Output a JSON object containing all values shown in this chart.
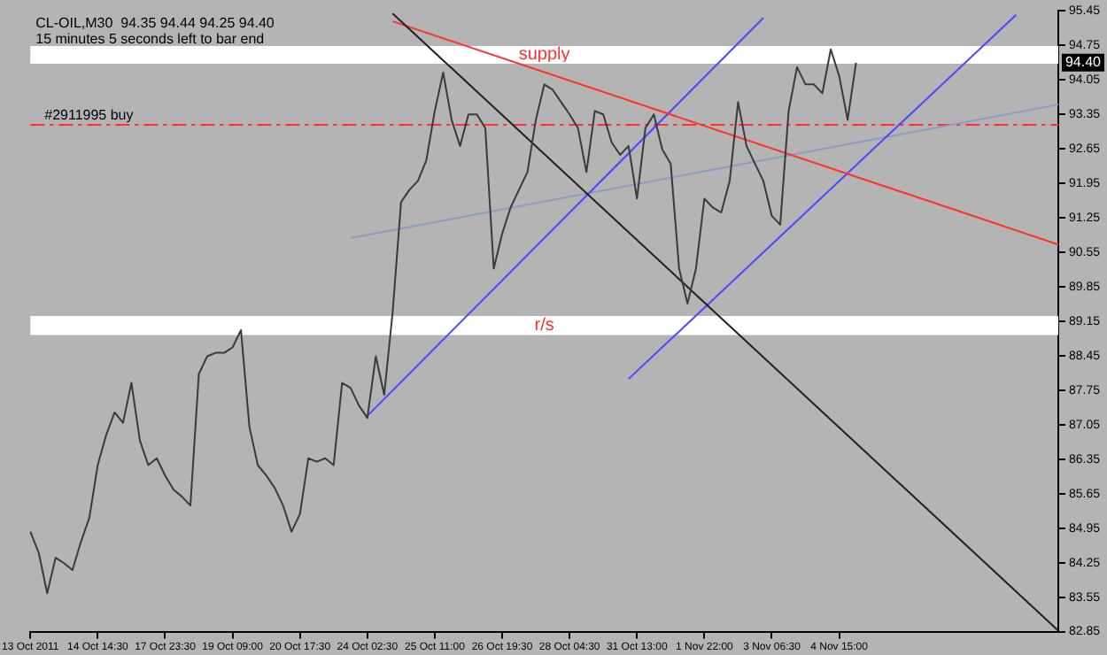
{
  "chart_data": {
    "type": "line",
    "title": "CL-OIL,M30  94.35 94.44 94.25 94.40",
    "subtitle": "15 minutes 5 seconds left to bar end",
    "categories": [
      "13 Oct 2011",
      null,
      null,
      null,
      null,
      null,
      null,
      null,
      "14 Oct 14:30",
      null,
      null,
      null,
      null,
      null,
      null,
      null,
      "17 Oct 23:30",
      null,
      null,
      null,
      null,
      null,
      null,
      null,
      "19 Oct 09:00",
      null,
      null,
      null,
      null,
      null,
      null,
      null,
      "20 Oct 17:30",
      null,
      null,
      null,
      null,
      null,
      null,
      null,
      "24 Oct 02:30",
      null,
      null,
      null,
      null,
      null,
      null,
      null,
      "25 Oct 11:00",
      null,
      null,
      null,
      null,
      null,
      null,
      null,
      "26 Oct 19:30",
      null,
      null,
      null,
      null,
      null,
      null,
      null,
      "28 Oct 04:30",
      null,
      null,
      null,
      null,
      null,
      null,
      null,
      "31 Oct 13:00",
      null,
      null,
      null,
      null,
      null,
      null,
      null,
      "1 Nov 22:00",
      null,
      null,
      null,
      null,
      null,
      null,
      null,
      "3 Nov 06:30",
      null,
      null,
      null,
      null,
      null,
      null,
      null,
      "4 Nov 15:00",
      null,
      null,
      null,
      null,
      null,
      null,
      null,
      null,
      null,
      null,
      null,
      null,
      null,
      null,
      null,
      null,
      null,
      null,
      null,
      null,
      null,
      null,
      null,
      null,
      null,
      null
    ],
    "series": [
      {
        "type": "line",
        "color": "#3a3a3a",
        "values": [
          84.88,
          84.45,
          83.63,
          84.35,
          84.24,
          84.1,
          84.67,
          85.16,
          86.23,
          86.84,
          87.3,
          87.09,
          87.9,
          86.73,
          86.23,
          86.37,
          86.02,
          85.73,
          85.59,
          85.41,
          88.08,
          88.44,
          88.51,
          88.51,
          88.62,
          88.97,
          87.01,
          86.23,
          86.02,
          85.77,
          85.41,
          84.88,
          85.24,
          86.37,
          86.3,
          86.37,
          86.23,
          87.9,
          87.8,
          87.44,
          87.19,
          88.44,
          87.66,
          89.33,
          91.57,
          91.82,
          92.0,
          92.42,
          93.42,
          94.2,
          93.24,
          92.71,
          93.35,
          93.35,
          93.07,
          90.22,
          90.93,
          91.46,
          91.82,
          92.18,
          93.24,
          93.96,
          93.85,
          93.6,
          93.35,
          93.07,
          92.18,
          93.42,
          93.35,
          92.78,
          92.53,
          92.71,
          91.64,
          93.07,
          93.35,
          92.64,
          92.35,
          90.22,
          89.51,
          90.22,
          91.64,
          91.46,
          91.36,
          92.0,
          93.6,
          92.71,
          92.35,
          92.0,
          91.29,
          91.11,
          93.42,
          94.31,
          93.96,
          93.96,
          93.78,
          94.67,
          94.13,
          93.24,
          94.4,
          null,
          null,
          null,
          null,
          null,
          null,
          null,
          null,
          null,
          null,
          null,
          null,
          null,
          null,
          null,
          null,
          null,
          null,
          null,
          null,
          null,
          null,
          null,
          null
        ]
      },
      {
        "type": "line",
        "color": "#202020",
        "values": [
          null,
          null,
          null,
          null,
          null,
          null,
          null,
          null,
          null,
          null,
          null,
          null,
          null,
          null,
          null,
          null,
          null,
          null,
          null,
          null,
          null,
          null,
          null,
          null,
          null,
          null,
          null,
          null,
          null,
          null,
          null,
          null,
          null,
          null,
          null,
          null,
          null,
          null,
          null,
          null,
          null,
          null,
          null,
          95.4,
          null,
          null,
          null,
          null,
          null,
          null,
          null,
          null,
          null,
          null,
          null,
          null,
          null,
          null,
          null,
          null,
          null,
          null,
          null,
          null,
          null,
          null,
          null,
          null,
          null,
          null,
          null,
          null,
          null,
          null,
          null,
          null,
          null,
          null,
          null,
          null,
          null,
          null,
          null,
          null,
          null,
          null,
          null,
          null,
          null,
          null,
          null,
          null,
          null,
          null,
          null,
          null,
          null,
          null,
          null,
          null,
          null,
          null,
          null,
          null,
          null,
          null,
          null,
          null,
          null,
          null,
          null,
          null,
          null,
          null,
          null,
          null,
          null,
          null,
          null,
          null,
          null,
          null,
          82.87
        ]
      },
      {
        "type": "line",
        "color": "#ff3030",
        "values": [
          null,
          null,
          null,
          null,
          null,
          null,
          null,
          null,
          null,
          null,
          null,
          null,
          null,
          null,
          null,
          null,
          null,
          null,
          null,
          null,
          null,
          null,
          null,
          null,
          null,
          null,
          null,
          null,
          null,
          null,
          null,
          null,
          null,
          null,
          null,
          null,
          null,
          null,
          null,
          null,
          null,
          null,
          null,
          95.24,
          null,
          null,
          null,
          null,
          null,
          null,
          null,
          null,
          null,
          null,
          null,
          null,
          null,
          null,
          null,
          null,
          null,
          null,
          null,
          null,
          null,
          null,
          null,
          null,
          null,
          null,
          null,
          null,
          null,
          null,
          null,
          null,
          null,
          null,
          null,
          null,
          null,
          null,
          null,
          null,
          null,
          null,
          null,
          null,
          null,
          null,
          null,
          null,
          null,
          null,
          null,
          null,
          null,
          null,
          null,
          null,
          null,
          null,
          null,
          null,
          null,
          null,
          null,
          null,
          null,
          null,
          null,
          null,
          null,
          null,
          null,
          null,
          null,
          null,
          null,
          null,
          null,
          null,
          90.71
        ]
      },
      {
        "type": "line",
        "color": "#4848ff",
        "values": [
          null,
          null,
          null,
          null,
          null,
          null,
          null,
          null,
          null,
          null,
          null,
          null,
          null,
          null,
          null,
          null,
          null,
          null,
          null,
          null,
          null,
          null,
          null,
          null,
          null,
          null,
          null,
          null,
          null,
          null,
          null,
          null,
          null,
          null,
          null,
          null,
          null,
          null,
          null,
          null,
          87.23,
          null,
          null,
          null,
          null,
          null,
          null,
          null,
          null,
          null,
          null,
          null,
          null,
          null,
          null,
          null,
          null,
          null,
          null,
          null,
          null,
          null,
          null,
          null,
          null,
          null,
          null,
          null,
          null,
          null,
          null,
          null,
          null,
          null,
          null,
          null,
          null,
          null,
          null,
          null,
          null,
          null,
          null,
          null,
          null,
          null,
          null,
          95.31,
          null,
          null,
          null,
          null,
          null,
          null,
          null,
          null,
          null,
          null,
          null,
          null,
          null,
          null,
          null,
          null,
          null,
          null,
          null,
          null,
          null,
          null,
          null,
          null,
          null,
          null,
          null,
          null,
          null,
          null,
          null,
          null,
          null,
          null,
          null
        ]
      },
      {
        "type": "line",
        "color": "#4848ff",
        "values": [
          null,
          null,
          null,
          null,
          null,
          null,
          null,
          null,
          null,
          null,
          null,
          null,
          null,
          null,
          null,
          null,
          null,
          null,
          null,
          null,
          null,
          null,
          null,
          null,
          null,
          null,
          null,
          null,
          null,
          null,
          null,
          null,
          null,
          null,
          null,
          null,
          null,
          null,
          null,
          null,
          null,
          null,
          null,
          null,
          null,
          null,
          null,
          null,
          null,
          null,
          null,
          null,
          null,
          null,
          null,
          null,
          null,
          null,
          null,
          null,
          null,
          null,
          null,
          null,
          null,
          null,
          null,
          null,
          null,
          null,
          null,
          87.98,
          null,
          null,
          null,
          null,
          null,
          null,
          null,
          null,
          null,
          null,
          null,
          null,
          null,
          null,
          null,
          null,
          null,
          null,
          null,
          null,
          null,
          null,
          null,
          null,
          null,
          null,
          null,
          null,
          null,
          null,
          null,
          null,
          null,
          null,
          null,
          null,
          null,
          null,
          null,
          null,
          null,
          null,
          null,
          null,
          null,
          95.37,
          null,
          null,
          null,
          null,
          null
        ]
      },
      {
        "type": "line",
        "color": "#8a9cc4",
        "values": [
          null,
          null,
          null,
          null,
          null,
          null,
          null,
          null,
          null,
          null,
          null,
          null,
          null,
          null,
          null,
          null,
          null,
          null,
          null,
          null,
          null,
          null,
          null,
          null,
          null,
          null,
          null,
          null,
          null,
          null,
          null,
          null,
          null,
          null,
          null,
          null,
          null,
          null,
          90.84,
          null,
          null,
          null,
          null,
          null,
          null,
          null,
          null,
          null,
          null,
          null,
          null,
          null,
          null,
          null,
          null,
          null,
          null,
          null,
          null,
          null,
          null,
          null,
          null,
          null,
          null,
          null,
          null,
          null,
          null,
          null,
          null,
          null,
          null,
          null,
          null,
          null,
          null,
          null,
          null,
          null,
          null,
          null,
          null,
          null,
          null,
          null,
          null,
          null,
          null,
          null,
          null,
          null,
          null,
          null,
          null,
          null,
          null,
          null,
          null,
          null,
          null,
          null,
          null,
          null,
          null,
          null,
          null,
          null,
          null,
          null,
          null,
          null,
          null,
          null,
          null,
          null,
          null,
          null,
          null,
          null,
          null,
          null,
          93.55
        ]
      }
    ],
    "ylim": [
      82.85,
      95.45
    ],
    "yticks": [
      82.85,
      83.55,
      84.25,
      84.95,
      85.65,
      86.35,
      87.05,
      87.75,
      88.45,
      89.15,
      89.85,
      90.55,
      91.25,
      91.95,
      92.65,
      93.35,
      94.05,
      94.75,
      95.45
    ],
    "bands": [
      {
        "axis": "y",
        "from": 94.38,
        "to": 94.74,
        "label": "supply",
        "color": "#ffffff"
      },
      {
        "axis": "y",
        "from": 88.87,
        "to": 89.26,
        "label": "r/s",
        "color": "#ffffff"
      }
    ],
    "ref_lines": [
      {
        "axis": "y",
        "value": 94.4,
        "label": "94.40",
        "color": "#ffffff",
        "line_style": "solid"
      },
      {
        "axis": "y",
        "value": 93.14,
        "label": "#2911995 buy",
        "color": "#ff3030",
        "line_style": "dashed"
      }
    ],
    "marker": "none",
    "legend": false
  }
}
